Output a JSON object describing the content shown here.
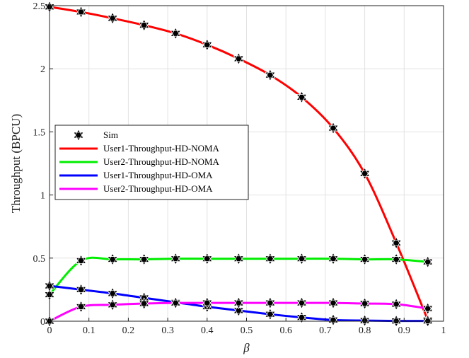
{
  "chart_data": {
    "type": "line",
    "title": "",
    "xlabel": "β",
    "ylabel": "Throughput (BPCU)",
    "xlim": [
      0,
      1.0
    ],
    "ylim": [
      0,
      2.5
    ],
    "xticks": [
      "0",
      "0.1",
      "0.2",
      "0.3",
      "0.4",
      "0.5",
      "0.6",
      "0.7",
      "0.8",
      "0.9",
      "1"
    ],
    "yticks": [
      "0",
      "0.5",
      "1",
      "1.5",
      "2",
      "2.5"
    ],
    "grid": true,
    "legend_position": "center-left",
    "x": [
      0,
      0.08,
      0.16,
      0.24,
      0.32,
      0.4,
      0.48,
      0.56,
      0.64,
      0.72,
      0.8,
      0.88,
      0.96
    ],
    "series": [
      {
        "name": "User1-Throughput-HD-NOMA",
        "color": "#ff0000",
        "values": [
          2.49,
          2.45,
          2.4,
          2.345,
          2.28,
          2.19,
          2.08,
          1.95,
          1.775,
          1.53,
          1.17,
          0.62,
          0.01
        ]
      },
      {
        "name": "User2-Throughput-HD-NOMA",
        "color": "#00ee00",
        "values": [
          0.21,
          0.48,
          0.49,
          0.49,
          0.495,
          0.495,
          0.495,
          0.495,
          0.495,
          0.495,
          0.49,
          0.49,
          0.47
        ]
      },
      {
        "name": "User1-Throughput-HD-OMA",
        "color": "#0000ff",
        "values": [
          0.28,
          0.25,
          0.22,
          0.185,
          0.15,
          0.115,
          0.085,
          0.055,
          0.03,
          0.01,
          0.005,
          0.002,
          0.002
        ]
      },
      {
        "name": "User2-Throughput-HD-OMA",
        "color": "#ff00ff",
        "values": [
          0.0,
          0.115,
          0.13,
          0.14,
          0.145,
          0.145,
          0.145,
          0.145,
          0.145,
          0.145,
          0.14,
          0.135,
          0.1
        ]
      }
    ],
    "markers": {
      "name": "Sim",
      "shape": "hexagram",
      "color": "#000000"
    }
  }
}
